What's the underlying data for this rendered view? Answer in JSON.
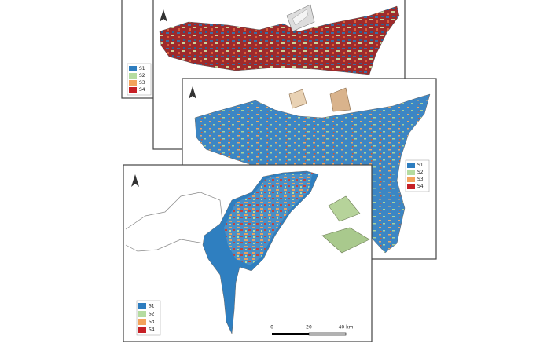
{
  "maps": [
    {
      "legend": [
        {
          "label": "S1",
          "color": "#2e7dbf"
        },
        {
          "label": "S2",
          "color": "#b5dca0"
        },
        {
          "label": "S3",
          "color": "#f3a35c"
        },
        {
          "label": "S4",
          "color": "#c62026"
        }
      ]
    },
    {
      "legend": [
        {
          "label": "S1",
          "color": "#2e7dbf"
        },
        {
          "label": "S2",
          "color": "#b5dca0"
        },
        {
          "label": "S3",
          "color": "#f3a35c"
        },
        {
          "label": "S4",
          "color": "#c62026"
        }
      ]
    },
    {
      "legend": [
        {
          "label": "S1",
          "color": "#2e7dbf"
        },
        {
          "label": "S2",
          "color": "#b5dca0"
        },
        {
          "label": "S3",
          "color": "#f3a35c"
        },
        {
          "label": "S4",
          "color": "#c62026"
        }
      ]
    }
  ],
  "scale_bar": {
    "labels": [
      "0",
      "20",
      "40 km"
    ]
  }
}
